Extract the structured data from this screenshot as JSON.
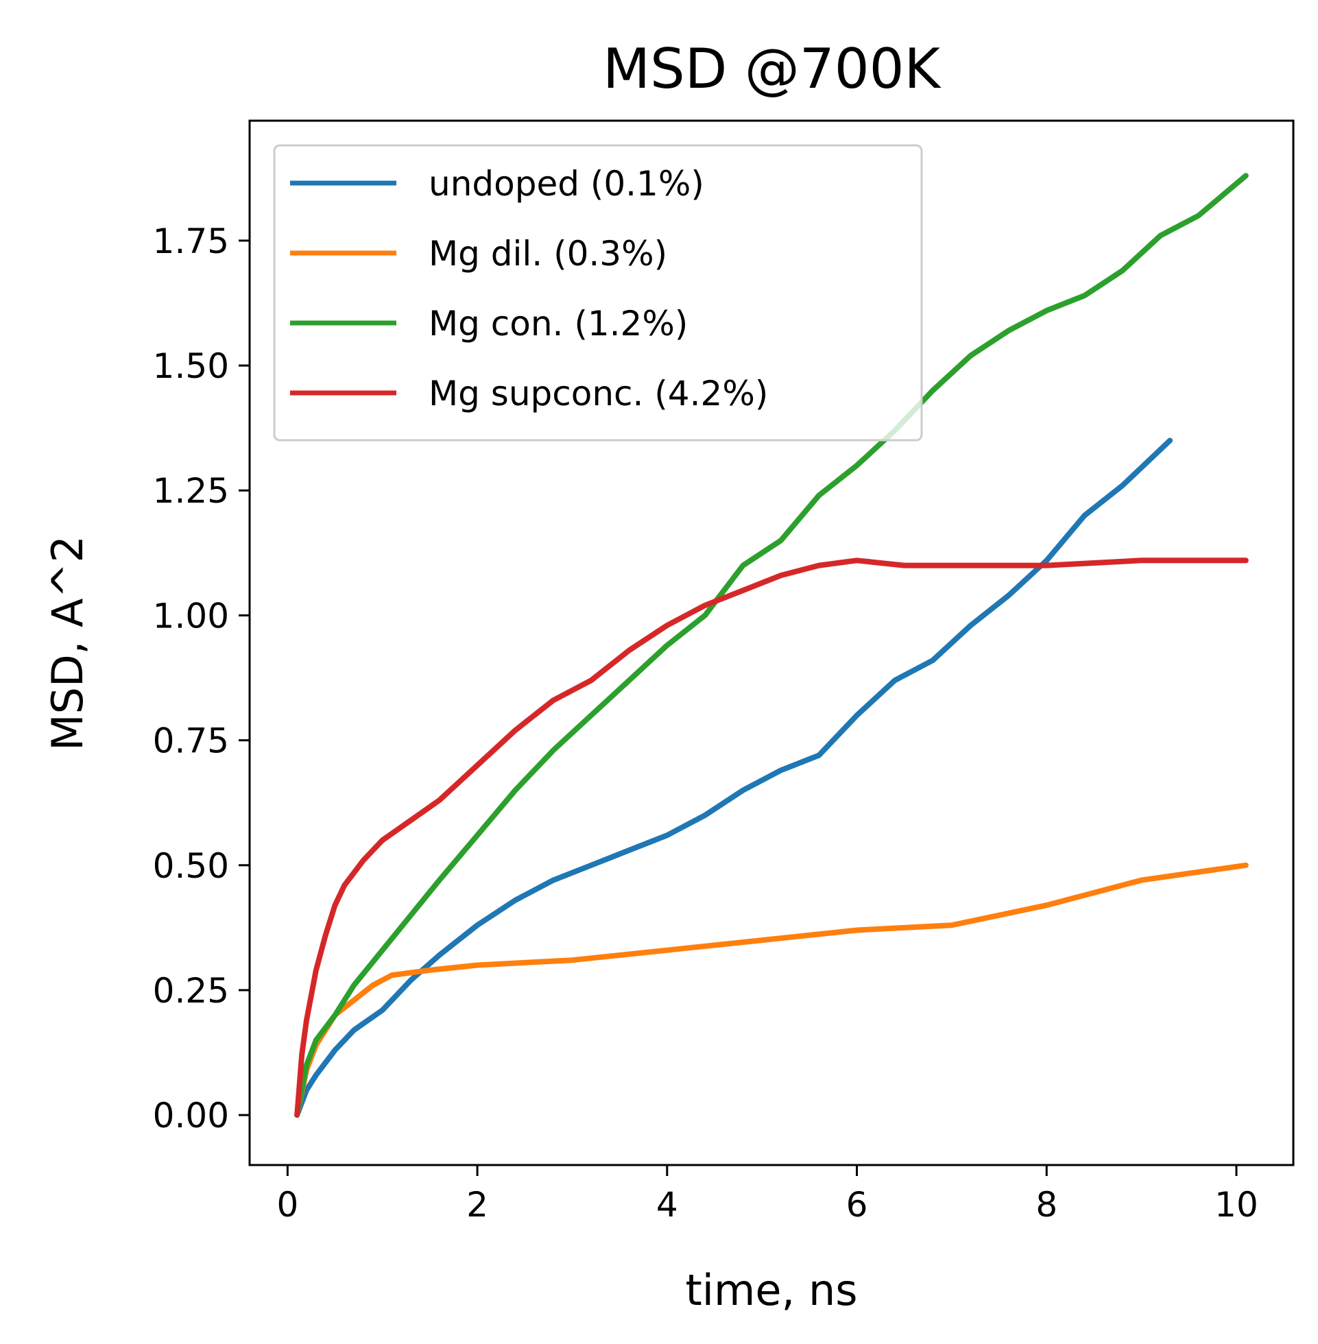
{
  "chart_data": {
    "type": "line",
    "title": "MSD @700K",
    "xlabel": "time, ns",
    "ylabel": "MSD, A^2",
    "xlim": [
      -0.4,
      10.6
    ],
    "ylim": [
      -0.1,
      1.99
    ],
    "xticks": [
      0,
      2,
      4,
      6,
      8,
      10
    ],
    "xtick_labels": [
      "0",
      "2",
      "4",
      "6",
      "8",
      "10"
    ],
    "yticks": [
      0.0,
      0.25,
      0.5,
      0.75,
      1.0,
      1.25,
      1.5,
      1.75
    ],
    "ytick_labels": [
      "0.00",
      "0.25",
      "0.50",
      "0.75",
      "1.00",
      "1.25",
      "1.50",
      "1.75"
    ],
    "grid": false,
    "legend_position": "top-left",
    "series": [
      {
        "name": "undoped (0.1%)",
        "color": "#1f77b4",
        "x": [
          0.1,
          0.2,
          0.3,
          0.5,
          0.7,
          1.0,
          1.3,
          1.6,
          2.0,
          2.4,
          2.8,
          3.2,
          3.6,
          4.0,
          4.4,
          4.8,
          5.2,
          5.6,
          6.0,
          6.4,
          6.8,
          7.2,
          7.6,
          8.0,
          8.4,
          8.8,
          9.3
        ],
        "y": [
          0.0,
          0.05,
          0.08,
          0.13,
          0.17,
          0.21,
          0.27,
          0.32,
          0.38,
          0.43,
          0.47,
          0.5,
          0.53,
          0.56,
          0.6,
          0.65,
          0.69,
          0.72,
          0.8,
          0.87,
          0.91,
          0.98,
          1.04,
          1.11,
          1.2,
          1.26,
          1.35
        ]
      },
      {
        "name": "Mg dil. (0.3%)",
        "color": "#ff7f0e",
        "x": [
          0.1,
          0.2,
          0.3,
          0.4,
          0.5,
          0.7,
          0.9,
          1.1,
          1.5,
          2.0,
          3.0,
          4.0,
          5.0,
          6.0,
          7.0,
          8.0,
          9.0,
          10.1
        ],
        "y": [
          0.0,
          0.09,
          0.14,
          0.17,
          0.2,
          0.23,
          0.26,
          0.28,
          0.29,
          0.3,
          0.31,
          0.33,
          0.35,
          0.37,
          0.38,
          0.42,
          0.47,
          0.5
        ]
      },
      {
        "name": "Mg con. (1.2%)",
        "color": "#2ca02c",
        "x": [
          0.1,
          0.2,
          0.3,
          0.5,
          0.7,
          1.0,
          1.3,
          1.6,
          2.0,
          2.4,
          2.8,
          3.2,
          3.6,
          4.0,
          4.4,
          4.8,
          5.2,
          5.6,
          6.0,
          6.4,
          6.8,
          7.2,
          7.6,
          8.0,
          8.4,
          8.8,
          9.2,
          9.6,
          10.1
        ],
        "y": [
          0.0,
          0.1,
          0.15,
          0.2,
          0.26,
          0.33,
          0.4,
          0.47,
          0.56,
          0.65,
          0.73,
          0.8,
          0.87,
          0.94,
          1.0,
          1.1,
          1.15,
          1.24,
          1.3,
          1.37,
          1.45,
          1.52,
          1.57,
          1.61,
          1.64,
          1.69,
          1.76,
          1.8,
          1.88
        ]
      },
      {
        "name": "Mg supconc. (4.2%)",
        "color": "#d62728",
        "x": [
          0.1,
          0.15,
          0.2,
          0.3,
          0.4,
          0.5,
          0.6,
          0.8,
          1.0,
          1.3,
          1.6,
          2.0,
          2.4,
          2.8,
          3.2,
          3.6,
          4.0,
          4.4,
          4.8,
          5.2,
          5.6,
          6.0,
          6.5,
          7.0,
          8.0,
          9.0,
          10.1
        ],
        "y": [
          0.0,
          0.12,
          0.19,
          0.29,
          0.36,
          0.42,
          0.46,
          0.51,
          0.55,
          0.59,
          0.63,
          0.7,
          0.77,
          0.83,
          0.87,
          0.93,
          0.98,
          1.02,
          1.05,
          1.08,
          1.1,
          1.11,
          1.1,
          1.1,
          1.1,
          1.11,
          1.11
        ]
      }
    ]
  }
}
